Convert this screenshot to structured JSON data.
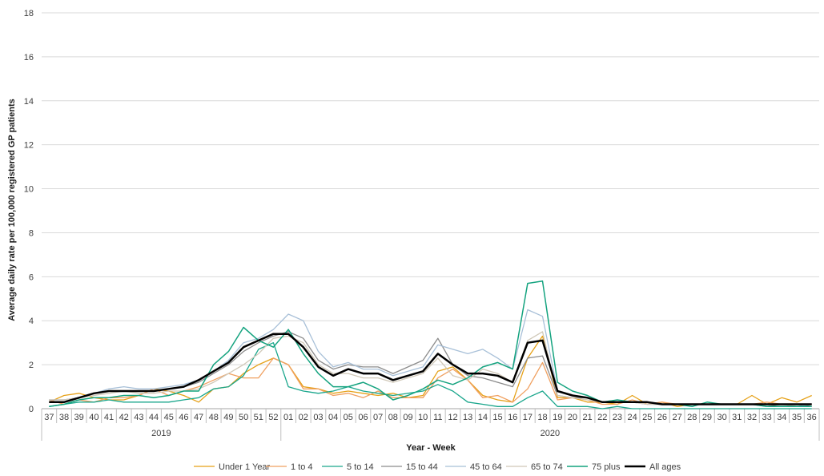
{
  "chart_data": {
    "type": "line",
    "ylabel": "Average daily rate per 100,000 registered GP patients",
    "xlabel": "Year - Week",
    "ylim": [
      0,
      18
    ],
    "y_ticks": [
      "0",
      "2",
      "4",
      "6",
      "8",
      "10",
      "12",
      "14",
      "16",
      "18"
    ],
    "categories": [
      "37",
      "38",
      "39",
      "40",
      "41",
      "42",
      "43",
      "44",
      "45",
      "46",
      "47",
      "48",
      "49",
      "50",
      "51",
      "52",
      "01",
      "02",
      "03",
      "04",
      "05",
      "06",
      "07",
      "08",
      "09",
      "10",
      "11",
      "12",
      "13",
      "14",
      "15",
      "16",
      "17",
      "18",
      "19",
      "20",
      "21",
      "22",
      "23",
      "24",
      "25",
      "26",
      "27",
      "28",
      "29",
      "30",
      "31",
      "32",
      "33",
      "34",
      "35",
      "36"
    ],
    "year_groups": [
      {
        "label": "2019",
        "count": 16
      },
      {
        "label": "2020",
        "count": 36
      }
    ],
    "grid": "horizontal",
    "legend_position": "bottom",
    "series": [
      {
        "name": "Under 1 Year",
        "color": "#E6A118",
        "width": 1.3,
        "values": [
          0.3,
          0.6,
          0.7,
          0.5,
          0.4,
          0.4,
          0.6,
          0.9,
          0.8,
          0.6,
          0.3,
          0.9,
          1.0,
          1.6,
          2.0,
          2.3,
          2.0,
          1.0,
          0.9,
          0.7,
          0.8,
          0.7,
          0.6,
          0.7,
          0.5,
          0.6,
          1.7,
          1.9,
          1.3,
          0.6,
          0.4,
          0.3,
          2.3,
          3.3,
          0.5,
          0.5,
          0.3,
          0.3,
          0.2,
          0.6,
          0.2,
          0.3,
          0.1,
          0.2,
          0.2,
          0.2,
          0.2,
          0.6,
          0.2,
          0.5,
          0.3,
          0.6
        ]
      },
      {
        "name": "1 to 4",
        "color": "#F0A060",
        "width": 1.3,
        "values": [
          0.4,
          0.2,
          0.4,
          0.3,
          0.5,
          0.5,
          0.6,
          0.9,
          0.6,
          0.8,
          1.0,
          1.3,
          1.6,
          1.4,
          1.4,
          2.3,
          2.0,
          0.9,
          0.9,
          0.6,
          0.7,
          0.5,
          0.8,
          0.5,
          0.5,
          0.5,
          1.4,
          1.8,
          1.3,
          0.5,
          0.6,
          0.3,
          0.9,
          2.1,
          0.4,
          0.5,
          0.4,
          0.2,
          0.2,
          0.4,
          0.2,
          0.3,
          0.2,
          0.2,
          0.2,
          0.2,
          0.2,
          0.2,
          0.3,
          0.2,
          0.2,
          0.2
        ]
      },
      {
        "name": "5 to 14",
        "color": "#1AA68C",
        "width": 1.3,
        "values": [
          0.1,
          0.2,
          0.3,
          0.3,
          0.4,
          0.3,
          0.3,
          0.3,
          0.3,
          0.4,
          0.5,
          0.9,
          1.0,
          1.5,
          2.7,
          3.0,
          1.0,
          0.8,
          0.7,
          0.8,
          1.0,
          0.8,
          0.7,
          0.6,
          0.7,
          0.8,
          1.1,
          0.8,
          0.3,
          0.2,
          0.1,
          0.1,
          0.5,
          0.8,
          0.1,
          0.1,
          0.1,
          0.0,
          0.1,
          0.0,
          0.0,
          0.0,
          0.0,
          0.0,
          0.0,
          0.0,
          0.0,
          0.0,
          0.0,
          0.0,
          0.0,
          0.0
        ]
      },
      {
        "name": "15 to 44",
        "color": "#8C8C8C",
        "width": 1.3,
        "values": [
          0.4,
          0.4,
          0.5,
          0.7,
          0.8,
          0.8,
          0.8,
          0.8,
          0.9,
          1.0,
          1.2,
          1.6,
          2.0,
          2.6,
          3.0,
          3.3,
          3.5,
          3.2,
          2.2,
          1.8,
          2.0,
          1.9,
          1.9,
          1.6,
          1.9,
          2.2,
          3.2,
          2.0,
          1.5,
          1.4,
          1.2,
          1.0,
          2.3,
          2.4,
          0.6,
          0.5,
          0.5,
          0.3,
          0.3,
          0.3,
          0.2,
          0.2,
          0.2,
          0.2,
          0.2,
          0.2,
          0.2,
          0.2,
          0.1,
          0.2,
          0.2,
          0.1
        ]
      },
      {
        "name": "45 to 64",
        "color": "#A8C0D8",
        "width": 1.3,
        "values": [
          0.4,
          0.4,
          0.5,
          0.7,
          0.9,
          1.0,
          0.9,
          0.9,
          1.0,
          1.1,
          1.3,
          1.7,
          2.2,
          3.0,
          3.2,
          3.6,
          4.3,
          4.0,
          2.6,
          1.9,
          2.1,
          1.8,
          1.8,
          1.5,
          1.7,
          1.9,
          2.9,
          2.7,
          2.5,
          2.7,
          2.3,
          1.8,
          4.5,
          4.2,
          0.8,
          0.6,
          0.5,
          0.3,
          0.3,
          0.3,
          0.2,
          0.2,
          0.2,
          0.2,
          0.2,
          0.2,
          0.2,
          0.2,
          0.2,
          0.2,
          0.1,
          0.2
        ]
      },
      {
        "name": "65 to 74",
        "color": "#D0C8B8",
        "width": 1.3,
        "values": [
          0.4,
          0.4,
          0.5,
          0.6,
          0.7,
          0.8,
          0.7,
          0.7,
          0.8,
          0.8,
          0.9,
          1.2,
          1.6,
          2.0,
          2.5,
          3.2,
          3.3,
          3.0,
          2.0,
          1.6,
          1.6,
          1.4,
          1.4,
          1.2,
          1.4,
          1.6,
          2.3,
          1.5,
          1.3,
          1.8,
          1.6,
          1.2,
          3.1,
          3.5,
          0.6,
          0.5,
          0.4,
          0.3,
          0.3,
          0.3,
          0.2,
          0.2,
          0.2,
          0.2,
          0.2,
          0.2,
          0.2,
          0.2,
          0.2,
          0.2,
          0.1,
          0.1
        ]
      },
      {
        "name": "75 plus",
        "color": "#14A37F",
        "width": 1.5,
        "values": [
          0.1,
          0.2,
          0.4,
          0.5,
          0.5,
          0.6,
          0.6,
          0.5,
          0.6,
          0.8,
          0.8,
          2.0,
          2.6,
          3.7,
          3.1,
          2.8,
          3.6,
          2.5,
          1.6,
          1.0,
          1.0,
          1.2,
          0.9,
          0.4,
          0.6,
          0.9,
          1.3,
          1.1,
          1.4,
          1.9,
          2.1,
          1.8,
          5.7,
          5.8,
          1.2,
          0.8,
          0.6,
          0.3,
          0.4,
          0.3,
          0.3,
          0.2,
          0.2,
          0.1,
          0.3,
          0.2,
          0.2,
          0.2,
          0.1,
          0.1,
          0.1,
          0.1
        ]
      },
      {
        "name": "All ages",
        "color": "#000000",
        "width": 2.5,
        "values": [
          0.3,
          0.3,
          0.5,
          0.7,
          0.8,
          0.8,
          0.8,
          0.8,
          0.9,
          1.0,
          1.3,
          1.7,
          2.1,
          2.8,
          3.1,
          3.4,
          3.4,
          2.8,
          1.9,
          1.5,
          1.8,
          1.6,
          1.6,
          1.3,
          1.5,
          1.7,
          2.5,
          2.0,
          1.6,
          1.6,
          1.5,
          1.2,
          3.0,
          3.1,
          0.8,
          0.6,
          0.5,
          0.3,
          0.3,
          0.3,
          0.3,
          0.2,
          0.2,
          0.2,
          0.2,
          0.2,
          0.2,
          0.2,
          0.2,
          0.2,
          0.2,
          0.2
        ]
      }
    ]
  }
}
